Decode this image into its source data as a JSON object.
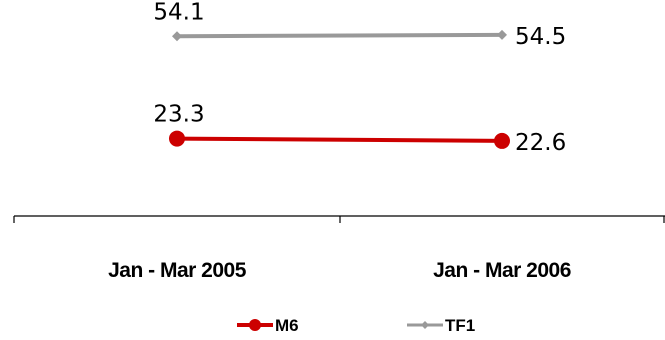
{
  "chart_data": {
    "type": "line",
    "categories": [
      "Jan - Mar 2005",
      "Jan - Mar 2006"
    ],
    "series": [
      {
        "name": "TF1",
        "values": [
          54.1,
          54.5
        ],
        "color": "#999999",
        "marker": "diamond"
      },
      {
        "name": "M6",
        "values": [
          23.3,
          22.6
        ],
        "color": "#cc0000",
        "marker": "circle"
      }
    ],
    "ylim": [
      0,
      62
    ],
    "grid": false,
    "legend": "bottom-center"
  }
}
